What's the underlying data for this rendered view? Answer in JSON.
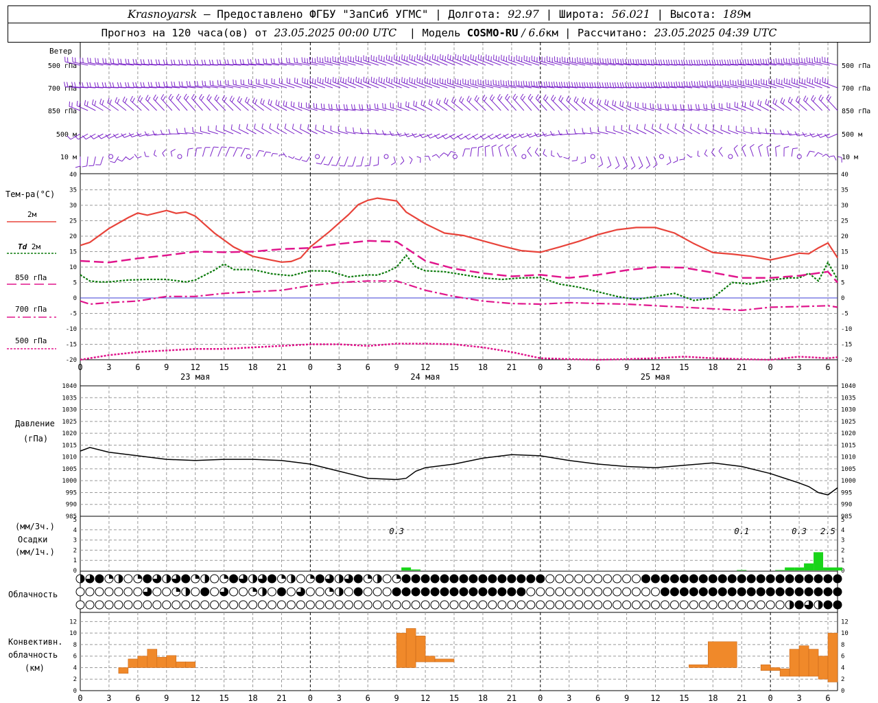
{
  "header": {
    "city": "Krasnoyarsk",
    "provider": " – Предоставлено ФГБУ \"ЗапСиб УГМС\" | Долгота: ",
    "lon": "92.97",
    "lat_label": " | Широта: ",
    "lat": "56.021",
    "alt_label": " | Высота: ",
    "alt": "189",
    "alt_unit": "м",
    "forecast_label": "Прогноз на 120 часа(ов) от ",
    "forecast_start": "23.05.2025 00:00 UTC",
    "model_label": "  | Модель ",
    "model": "COSMO-RU",
    "model_sep": " / ",
    "resolution": "6.6",
    "res_unit": "км",
    "computed_label": " | Рассчитано: ",
    "computed": "23.05.2025 04:39 UTC"
  },
  "labels": {
    "wind_title": "Ветер",
    "wind_levels": [
      "500 гПа",
      "700 гПа",
      "850 гПа",
      "500 м",
      "10  м"
    ],
    "temp_title": "Тем-ра(°C)",
    "temp_2m": "2м",
    "td_prefix": "Td",
    "td_2m": "2м",
    "t850": "850 гПа",
    "t700": "700 гПа",
    "t500": "500 гПа",
    "pressure_title": "Давление",
    "pressure_unit": "(гПа)",
    "precip_unit3": "(мм/3ч.)",
    "precip_title": "Осадки",
    "precip_unit1": "(мм/1ч.)",
    "cloud_title": "Облачность",
    "conv_title1": "Конвективн.",
    "conv_title2": "облачность",
    "conv_unit": "(км)",
    "dates": [
      "23 мая",
      "24 мая",
      "25 мая"
    ],
    "hour_ticks": [
      "0",
      "3",
      "6",
      "9",
      "12",
      "15",
      "18",
      "21",
      "0",
      "3",
      "6",
      "9",
      "12",
      "15",
      "18",
      "21",
      "0",
      "3",
      "6",
      "9",
      "12",
      "15",
      "18",
      "21",
      "0",
      "3",
      "6"
    ],
    "precip_totals": [
      {
        "h": 33,
        "text": "0.3"
      },
      {
        "h": 69,
        "text": "0.1"
      },
      {
        "h": 75,
        "text": "0.3"
      },
      {
        "h": 78,
        "text": "2.5"
      }
    ]
  },
  "colors": {
    "t2m": "#e8433a",
    "td": "#0b7a0b",
    "magenta": "#e0158c",
    "wind": "#7a22c8",
    "rain": "#19d419",
    "conv": "#f0892a",
    "grid": "#999999",
    "zero_line": "#3b3bd6"
  },
  "chart_data": [
    {
      "type": "line",
      "title": "Тем-ра(°C)",
      "x_unit": "hours since 23.05.2025 00:00 UTC",
      "ylim": [
        -20,
        40
      ],
      "series": [
        {
          "name": "2м",
          "x": [
            0,
            1,
            3,
            5,
            6,
            7,
            9,
            10,
            11,
            12,
            14,
            16,
            18,
            20,
            21,
            22,
            23,
            24,
            26,
            28,
            29,
            30,
            31,
            33,
            34,
            36,
            38,
            40,
            42,
            44,
            46,
            48,
            50,
            52,
            54,
            56,
            58,
            60,
            62,
            64,
            66,
            68,
            70,
            72,
            74,
            75,
            76,
            77,
            78,
            79
          ],
          "y": [
            17,
            18,
            22.5,
            26,
            27.5,
            26.8,
            28.3,
            27.4,
            27.8,
            26.5,
            21,
            16.5,
            13.5,
            12.2,
            11.6,
            11.8,
            13,
            16.5,
            21.5,
            27,
            30.2,
            31.6,
            32.3,
            31.4,
            27.8,
            24,
            21,
            20.2,
            18.5,
            16.8,
            15.3,
            14.8,
            16.5,
            18.3,
            20.5,
            22.1,
            22.8,
            22.8,
            21,
            17.6,
            14.7,
            14.2,
            13.5,
            12.3,
            13.7,
            14.5,
            14.3,
            16.2,
            17.8,
            13
          ]
        },
        {
          "name": "Td 2м",
          "x": [
            0,
            1,
            2,
            3,
            5,
            7,
            9,
            11,
            12,
            14,
            15,
            16,
            18,
            20,
            22,
            24,
            26,
            28,
            30,
            31,
            32,
            33,
            34,
            35,
            36,
            38,
            40,
            42,
            44,
            46,
            48,
            50,
            52,
            54,
            56,
            58,
            60,
            62,
            64,
            66,
            68,
            70,
            72,
            74,
            75,
            76,
            77,
            78,
            79
          ],
          "y": [
            7.5,
            5.5,
            5.2,
            5.2,
            5.8,
            6,
            6,
            5.2,
            5.8,
            9,
            11,
            9.2,
            9.2,
            7.8,
            7.2,
            8.8,
            8.7,
            6.8,
            7.5,
            7.4,
            8.5,
            10,
            13.8,
            10,
            8.8,
            8.5,
            7.5,
            6.5,
            6,
            6.5,
            6.6,
            4.5,
            3.5,
            2,
            0.5,
            -0.5,
            0.5,
            1.5,
            -0.8,
            0,
            5,
            4.5,
            5.8,
            6.5,
            6.5,
            8,
            5.5,
            11.5,
            6
          ]
        },
        {
          "name": "850 гПа",
          "x": [
            0,
            3,
            6,
            9,
            12,
            15,
            18,
            21,
            24,
            27,
            30,
            33,
            36,
            39,
            42,
            45,
            48,
            51,
            54,
            57,
            60,
            63,
            66,
            69,
            72,
            75,
            78,
            79
          ],
          "y": [
            12,
            11.5,
            12.8,
            13.8,
            15,
            14.8,
            15,
            15.8,
            16.2,
            17.5,
            18.5,
            18.2,
            12,
            9.5,
            8,
            7,
            7.5,
            6.5,
            7.5,
            9,
            10,
            9.8,
            8.2,
            6.5,
            6.5,
            7.2,
            8.5,
            5
          ]
        },
        {
          "name": "700 гПа",
          "x": [
            0,
            1,
            3,
            6,
            9,
            12,
            15,
            18,
            21,
            24,
            27,
            30,
            33,
            36,
            39,
            42,
            45,
            48,
            51,
            54,
            57,
            60,
            63,
            66,
            69,
            72,
            75,
            78,
            79
          ],
          "y": [
            -1,
            -2,
            -1.5,
            -1,
            0.5,
            0.5,
            1.5,
            2,
            2.5,
            4,
            5,
            5.5,
            5.5,
            2.5,
            0.5,
            -1,
            -1.8,
            -2,
            -1.5,
            -1.8,
            -2,
            -2.5,
            -3,
            -3.5,
            -4,
            -3,
            -2.8,
            -2.5,
            -3
          ]
        },
        {
          "name": "500 гПа",
          "x": [
            0,
            3,
            6,
            9,
            12,
            15,
            18,
            21,
            24,
            27,
            30,
            33,
            36,
            39,
            42,
            45,
            48,
            51,
            54,
            57,
            60,
            63,
            66,
            69,
            72,
            75,
            78,
            79
          ],
          "y": [
            -20,
            -18.5,
            -17.5,
            -17,
            -16.5,
            -16.5,
            -16,
            -15.5,
            -15,
            -15,
            -15.5,
            -14.8,
            -14.8,
            -15,
            -16,
            -17.5,
            -19.5,
            -19.8,
            -20,
            -19.8,
            -19.5,
            -19,
            -19.5,
            -19.8,
            -20,
            -19,
            -19.5,
            -19.2
          ]
        }
      ]
    },
    {
      "type": "line",
      "title": "Давление",
      "ylabel": "(гПа)",
      "ylim": [
        985,
        1040
      ],
      "series": [
        {
          "name": "Давление",
          "x": [
            0,
            1,
            3,
            6,
            9,
            12,
            15,
            18,
            21,
            24,
            27,
            30,
            33,
            34,
            35,
            36,
            39,
            42,
            45,
            48,
            51,
            54,
            57,
            60,
            63,
            66,
            69,
            72,
            75,
            76,
            77,
            78,
            79
          ],
          "y": [
            1012.5,
            1014,
            1012,
            1010.5,
            1009,
            1008.5,
            1009,
            1009,
            1008.5,
            1007,
            1004,
            1001,
            1000.5,
            1001,
            1004,
            1005.5,
            1007,
            1009.5,
            1011,
            1010.5,
            1008.5,
            1007,
            1006,
            1005.5,
            1006.5,
            1007.5,
            1006,
            1003,
            999,
            997.5,
            995,
            994,
            997
          ]
        }
      ]
    },
    {
      "type": "bar",
      "title": "Осадки",
      "ylabel": "(мм/1ч.)",
      "ylim": [
        0,
        5
      ],
      "x": [
        34,
        35,
        69,
        73,
        74,
        75,
        76,
        77,
        78,
        79
      ],
      "values": [
        0.3,
        0.1,
        0.05,
        0.05,
        0.3,
        0.3,
        0.7,
        1.8,
        0.3,
        0.3
      ]
    },
    {
      "type": "bar",
      "title": "Конвективн. облачность",
      "ylabel": "(км)",
      "ylim": [
        0,
        13
      ],
      "bars": [
        {
          "h": 4.5,
          "w": 1,
          "bottom": 3,
          "top": 4
        },
        {
          "h": 5.5,
          "w": 1,
          "bottom": 4,
          "top": 5.5
        },
        {
          "h": 6.5,
          "w": 1,
          "bottom": 4,
          "top": 6
        },
        {
          "h": 7.5,
          "w": 1,
          "bottom": 4,
          "top": 7.2
        },
        {
          "h": 8.5,
          "w": 1,
          "bottom": 4,
          "top": 5.8
        },
        {
          "h": 9.5,
          "w": 1,
          "bottom": 4,
          "top": 6.1
        },
        {
          "h": 10.5,
          "w": 1,
          "bottom": 4,
          "top": 5
        },
        {
          "h": 11.5,
          "w": 1,
          "bottom": 4,
          "top": 5
        },
        {
          "h": 33.5,
          "w": 1,
          "bottom": 4,
          "top": 10
        },
        {
          "h": 34.5,
          "w": 1,
          "bottom": 4,
          "top": 10.8
        },
        {
          "h": 35.5,
          "w": 1,
          "bottom": 5,
          "top": 9.5
        },
        {
          "h": 36.5,
          "w": 1,
          "bottom": 5,
          "top": 6
        },
        {
          "h": 38,
          "w": 2,
          "bottom": 5,
          "top": 5.5
        },
        {
          "h": 64.5,
          "w": 2,
          "bottom": 4,
          "top": 4.5
        },
        {
          "h": 67,
          "w": 3,
          "bottom": 4,
          "top": 8.5
        },
        {
          "h": 71.5,
          "w": 1,
          "bottom": 3.5,
          "top": 4.5
        },
        {
          "h": 72.5,
          "w": 1,
          "bottom": 3.5,
          "top": 4
        },
        {
          "h": 73.5,
          "w": 1,
          "bottom": 2.5,
          "top": 3.8
        },
        {
          "h": 74.5,
          "w": 1,
          "bottom": 2.5,
          "top": 7.2
        },
        {
          "h": 75.5,
          "w": 1,
          "bottom": 2.5,
          "top": 7.8
        },
        {
          "h": 76.5,
          "w": 1,
          "bottom": 2.5,
          "top": 7.2
        },
        {
          "h": 77.5,
          "w": 1,
          "bottom": 2,
          "top": 6
        },
        {
          "h": 78.5,
          "w": 1,
          "bottom": 1.5,
          "top": 10
        }
      ]
    }
  ]
}
